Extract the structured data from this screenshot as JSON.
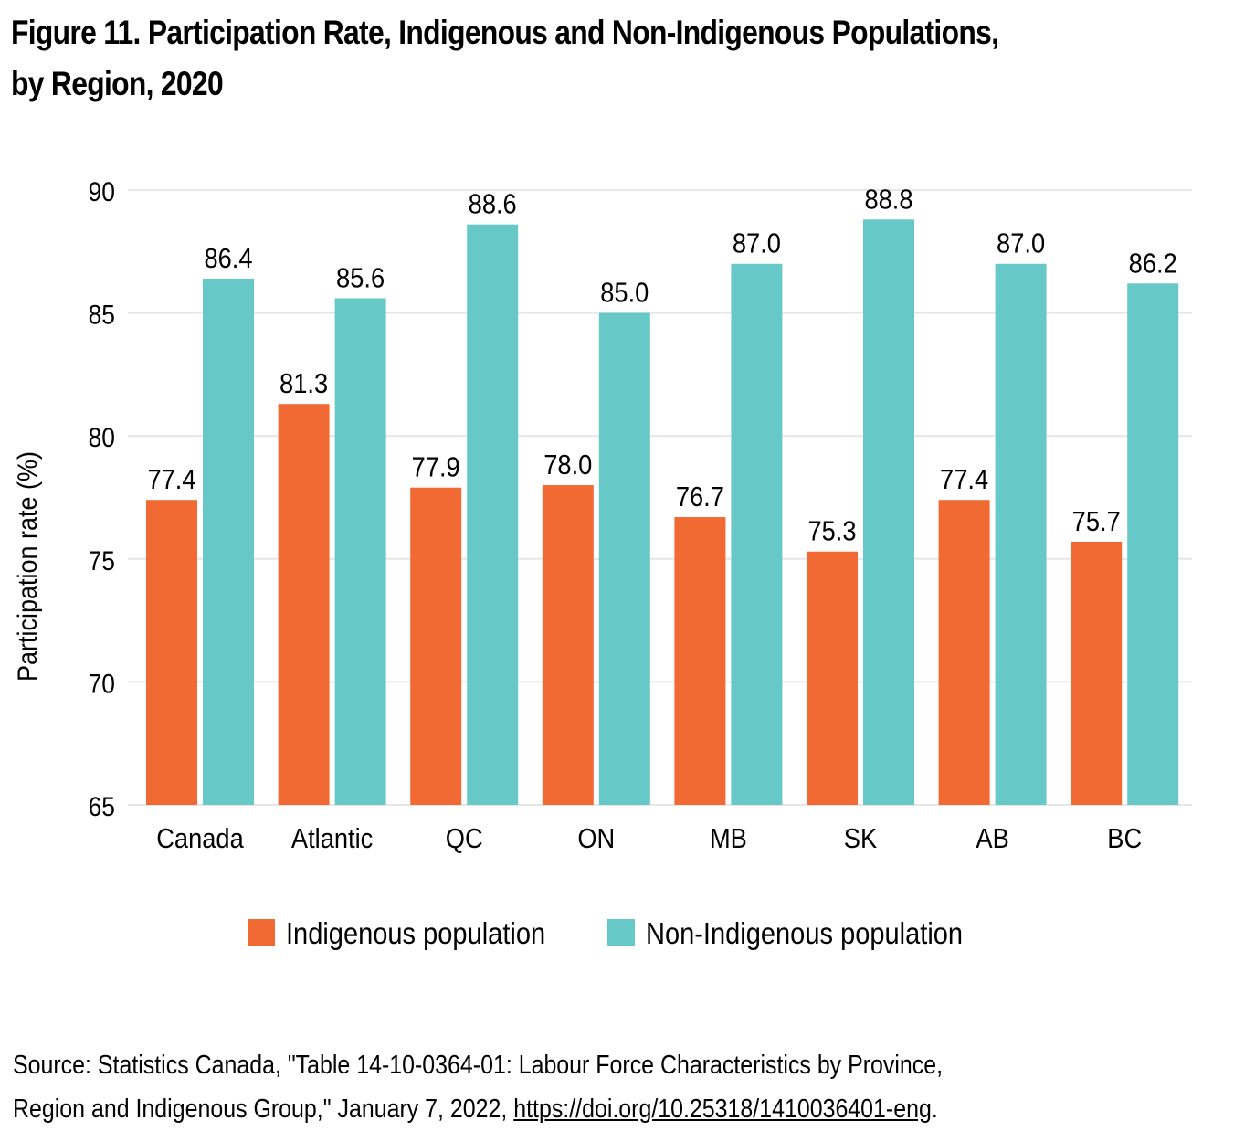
{
  "title": {
    "line1": "Figure 11. Participation Rate, Indigenous and Non-Indigenous Populations,",
    "line2": "by Region, 2020"
  },
  "source": {
    "text": "Source: Statistics Canada, \"Table 14-10-0364-01: Labour Force Characteristics by Province,",
    "text2": "Region and Indigenous Group,\" January 7, 2022, ",
    "link": "https://doi.org/10.25318/1410036401-eng",
    "trail": "."
  },
  "colors": {
    "indigenous": "#F26A33",
    "non_indigenous": "#67C8C8",
    "grid": "#E6E6E6"
  },
  "chart_data": {
    "type": "bar",
    "title": "Figure 11. Participation Rate, Indigenous and Non-Indigenous Populations, by Region, 2020",
    "xlabel": "",
    "ylabel": "Participation rate (%)",
    "ylim": [
      65,
      90
    ],
    "yticks": [
      65,
      70,
      75,
      80,
      85,
      90
    ],
    "grid": true,
    "legend_position": "bottom",
    "categories": [
      "Canada",
      "Atlantic",
      "QC",
      "ON",
      "MB",
      "SK",
      "AB",
      "BC"
    ],
    "series": [
      {
        "name": "Indigenous population",
        "color": "#F26A33",
        "values": [
          77.4,
          81.3,
          77.9,
          78.0,
          76.7,
          75.3,
          77.4,
          75.7
        ]
      },
      {
        "name": "Non-Indigenous population",
        "color": "#67C8C8",
        "values": [
          86.4,
          85.6,
          88.6,
          85.0,
          87.0,
          88.8,
          87.0,
          86.2
        ]
      }
    ]
  }
}
